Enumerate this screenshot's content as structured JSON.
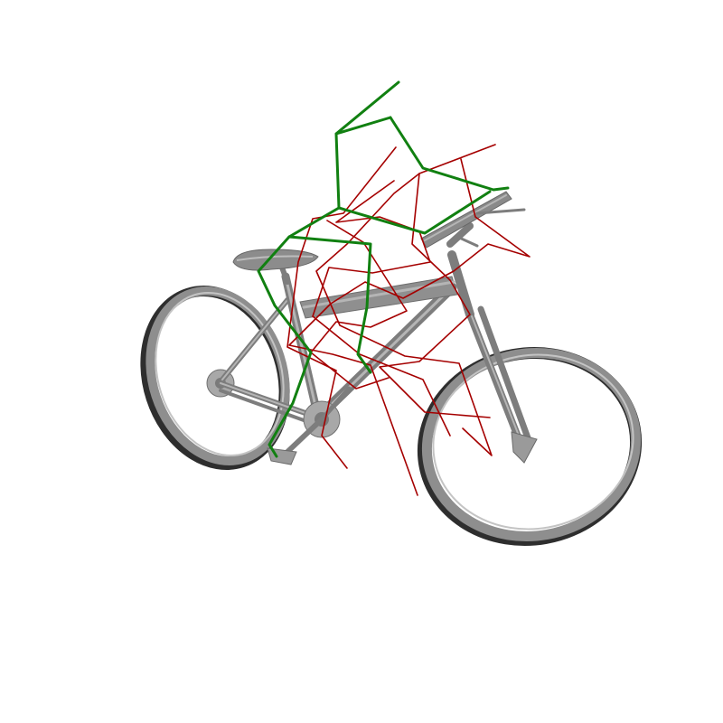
{
  "scene": {
    "background": "#ffffff",
    "object": "bicycle",
    "bike_color": "#8e8e8e"
  },
  "poses": {
    "reference": {
      "name": "reference-pose",
      "color": "#118011",
      "stroke": 3
    },
    "samples": {
      "name": "sampled-poses",
      "color": "#a50000",
      "stroke": 1.6,
      "count": 4
    }
  }
}
